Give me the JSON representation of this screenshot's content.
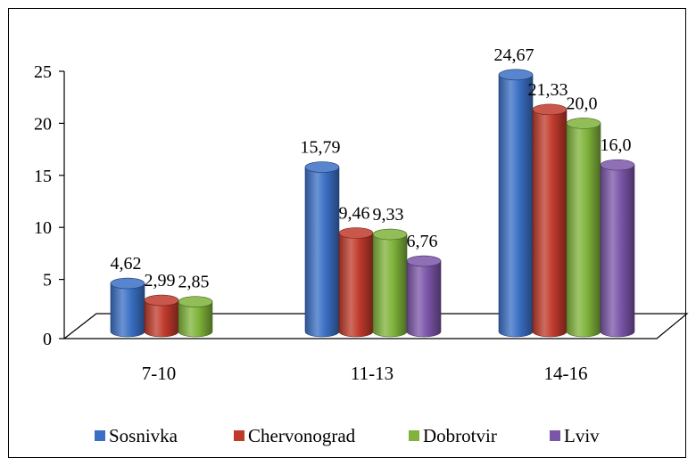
{
  "chart_data": {
    "type": "bar",
    "categories": [
      "7-10",
      "11-13",
      "14-16"
    ],
    "series": [
      {
        "name": "Sosnivka",
        "values": [
          4.62,
          15.79,
          24.67
        ],
        "labels": [
          "4,62",
          "15,79",
          "24,67"
        ],
        "color": "#3a6fc4"
      },
      {
        "name": "Chervonograd",
        "values": [
          2.99,
          9.46,
          21.33
        ],
        "labels": [
          "2,99",
          "9,46",
          "21,33"
        ],
        "color": "#c0392b"
      },
      {
        "name": "Dobrotvir",
        "values": [
          2.85,
          9.33,
          20.0
        ],
        "labels": [
          "2,85",
          "9,33",
          "20,0"
        ],
        "color": "#7fb33a"
      },
      {
        "name": "Lviv",
        "values": [
          null,
          6.76,
          16.0
        ],
        "labels": [
          null,
          "6,76",
          "16,0"
        ],
        "color": "#7b55a8"
      }
    ],
    "yticks": [
      "0",
      "5",
      "10",
      "15",
      "20",
      "25"
    ],
    "ylim": [
      0,
      25
    ],
    "legend_position": "bottom",
    "style": "3d-cylinder"
  }
}
